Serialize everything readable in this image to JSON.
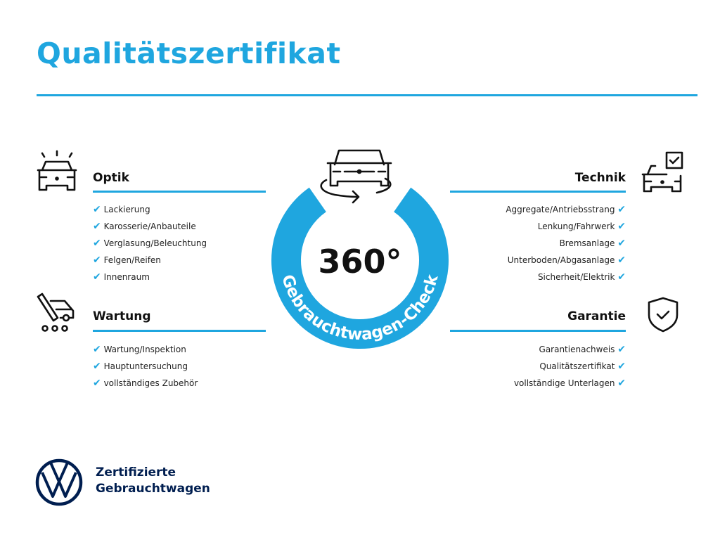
{
  "title": "Qualitätszertifikat",
  "colors": {
    "accent": "#1fa6df",
    "brand_navy": "#001e50",
    "text": "#111111"
  },
  "badge": {
    "number": "360°",
    "ring_text": "Gebrauchtwagen-Check",
    "icon": "car-rotate-icon"
  },
  "sections": {
    "optik": {
      "heading": "Optik",
      "icon": "car-lights-icon",
      "items": [
        "Lackierung",
        "Karosserie/Anbauteile",
        "Verglasung/Beleuchtung",
        "Felgen/Reifen",
        "Innenraum"
      ]
    },
    "wartung": {
      "heading": "Wartung",
      "icon": "service-truck-icon",
      "items": [
        "Wartung/Inspektion",
        "Hauptuntersuchung",
        "vollständiges Zubehör"
      ]
    },
    "technik": {
      "heading": "Technik",
      "icon": "car-checklist-icon",
      "items": [
        "Aggregate/Antriebsstrang",
        "Lenkung/Fahrwerk",
        "Bremsanlage",
        "Unterboden/Abgasanlage",
        "Sicherheit/Elektrik"
      ]
    },
    "garantie": {
      "heading": "Garantie",
      "icon": "shield-check-icon",
      "items": [
        "Garantienachweis",
        "Qualitätszertifikat",
        "vollständige Unterlagen"
      ]
    }
  },
  "check_glyph": "✔",
  "footer": {
    "line1": "Zertifizierte",
    "line2": "Gebrauchtwagen",
    "logo": "vw-logo"
  }
}
